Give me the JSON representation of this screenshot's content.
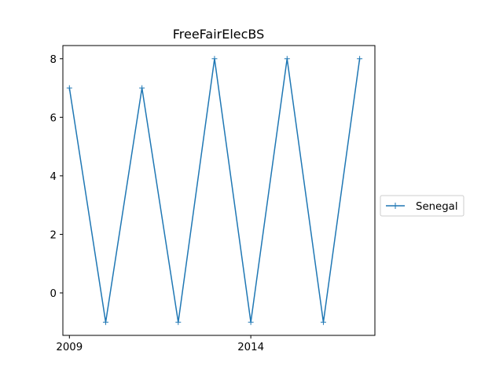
{
  "chart_data": {
    "type": "line",
    "title": "FreeFairElecBS",
    "xlabel": "",
    "ylabel": "",
    "x": [
      2009,
      2010,
      2011,
      2012,
      2013,
      2014,
      2015,
      2016,
      2017
    ],
    "series": [
      {
        "name": "Senegal",
        "values": [
          7,
          -1,
          7,
          -1,
          8,
          -1,
          8,
          -1,
          8
        ],
        "color": "#1f77b4",
        "marker": "+"
      }
    ],
    "x_ticks": [
      {
        "value": 2009,
        "label": "2009"
      },
      {
        "value": 2014,
        "label": "2014"
      }
    ],
    "y_ticks": [
      {
        "value": 0,
        "label": "0"
      },
      {
        "value": 2,
        "label": "2"
      },
      {
        "value": 4,
        "label": "4"
      },
      {
        "value": 6,
        "label": "6"
      },
      {
        "value": 8,
        "label": "8"
      }
    ],
    "xlim": [
      2008.82,
      2017.42
    ],
    "ylim": [
      -1.45,
      8.45
    ],
    "grid": false,
    "legend_position": "right"
  }
}
